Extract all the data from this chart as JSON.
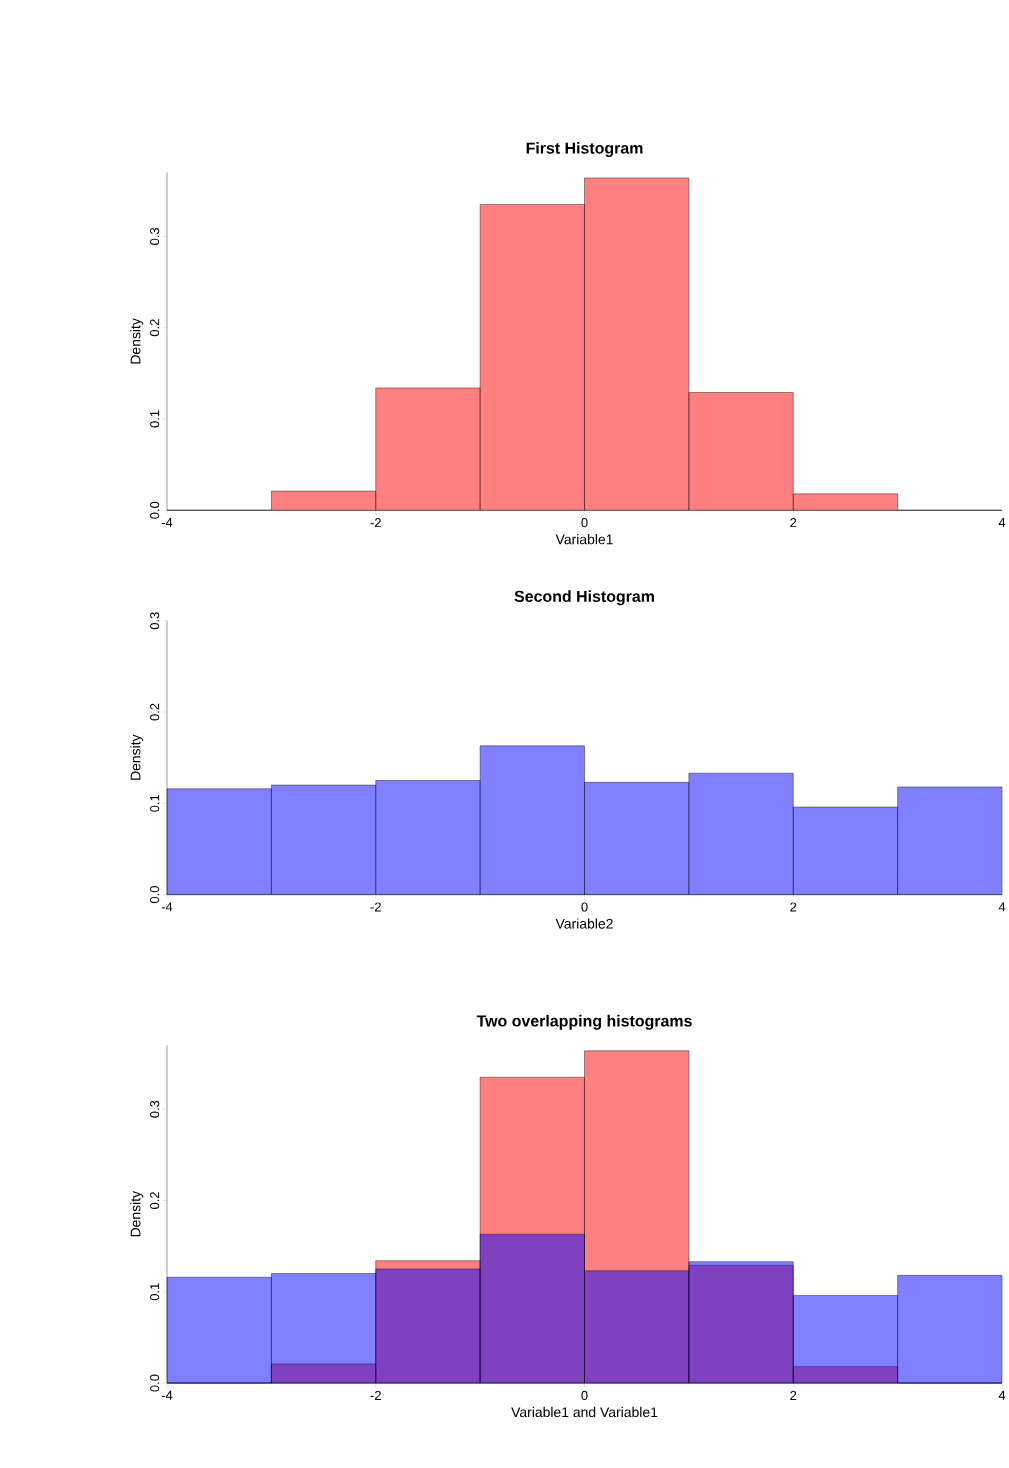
{
  "chart_data": [
    {
      "type": "histogram",
      "title": "First Histogram",
      "xlabel": "Variable1",
      "ylabel": "Density",
      "bins": [
        -4,
        -3,
        -2,
        -1,
        0,
        1,
        2,
        3,
        4
      ],
      "series": [
        {
          "color": "#ff8080",
          "values": [
            0,
            0.021,
            0.134,
            0.335,
            0.364,
            0.129,
            0.018,
            0
          ]
        }
      ],
      "xlim": [
        -4,
        4
      ],
      "ylim": [
        0,
        0.37
      ],
      "xticks": [
        -4,
        -2,
        0,
        2,
        4
      ],
      "yticks": [
        {
          "value": 0,
          "label": "0.0"
        },
        {
          "value": 0.1,
          "label": "0.1"
        },
        {
          "value": 0.2,
          "label": "0.2"
        },
        {
          "value": 0.3,
          "label": "0.3"
        }
      ]
    },
    {
      "type": "histogram",
      "title": "Second Histogram",
      "xlabel": "Variable2",
      "ylabel": "Density",
      "bins": [
        -4,
        -3,
        -2,
        -1,
        0,
        1,
        2,
        3,
        4
      ],
      "series": [
        {
          "color": "#8080ff",
          "values": [
            0.116,
            0.12,
            0.125,
            0.163,
            0.123,
            0.133,
            0.096,
            0.118
          ]
        }
      ],
      "xlim": [
        -4,
        4
      ],
      "ylim": [
        0,
        0.3
      ],
      "xticks": [
        -4,
        -2,
        0,
        2,
        4
      ],
      "yticks": [
        {
          "value": 0,
          "label": "0.0"
        },
        {
          "value": 0.1,
          "label": "0.1"
        },
        {
          "value": 0.2,
          "label": "0.2"
        },
        {
          "value": 0.3,
          "label": "0.3"
        }
      ]
    },
    {
      "type": "histogram",
      "title": "Two overlapping histograms",
      "xlabel": "Variable1 and Variable1",
      "ylabel": "Density",
      "bins": [
        -4,
        -3,
        -2,
        -1,
        0,
        1,
        2,
        3,
        4
      ],
      "series": [
        {
          "color": "#ff8080",
          "values": [
            0,
            0.021,
            0.134,
            0.335,
            0.364,
            0.129,
            0.018,
            0
          ]
        },
        {
          "color": "#8080ff",
          "values": [
            0.116,
            0.12,
            0.125,
            0.163,
            0.123,
            0.133,
            0.096,
            0.118
          ]
        }
      ],
      "xlim": [
        -4,
        4
      ],
      "ylim": [
        0,
        0.37
      ],
      "xticks": [
        -4,
        -2,
        0,
        2,
        4
      ],
      "yticks": [
        {
          "value": 0,
          "label": "0.0"
        },
        {
          "value": 0.1,
          "label": "0.1"
        },
        {
          "value": 0.2,
          "label": "0.2"
        },
        {
          "value": 0.3,
          "label": "0.3"
        }
      ]
    }
  ]
}
